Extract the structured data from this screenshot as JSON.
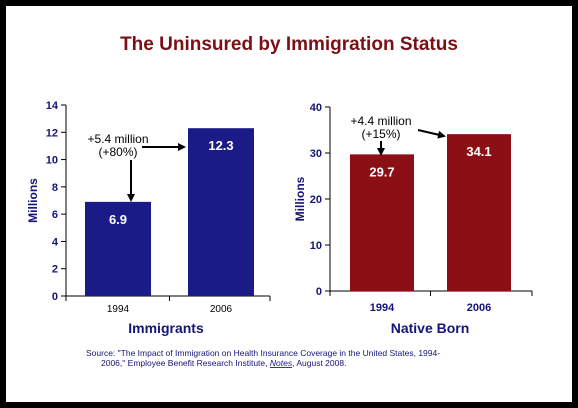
{
  "title": "The Uninsured by Immigration Status",
  "colors": {
    "border": "#000000",
    "title": "#7a1016",
    "immigrant_bar": "#1b1b88",
    "native_bar": "#8b0f14",
    "panel_label": "#14147a",
    "bar_text": "#ffffff"
  },
  "source": {
    "line1": "Source:  \"The Impact of Immigration on Health Insurance Coverage in the United States, 1994-",
    "line2_pre": "2006,\" Employee Benefit Research Institute, ",
    "line2_italic": "Notes",
    "line2_post": ", August 2008."
  },
  "chart_data": [
    {
      "type": "bar",
      "panel_label": "Immigrants",
      "ylabel": "Millions",
      "ylim": [
        0,
        14
      ],
      "yticks": [
        0,
        2,
        4,
        6,
        8,
        10,
        12,
        14
      ],
      "categories": [
        "1994",
        "2006"
      ],
      "values": [
        6.9,
        12.3
      ],
      "value_labels": [
        "6.9",
        "12.3"
      ],
      "annotation": {
        "line1": "+5.4 million",
        "line2": "(+80%)"
      }
    },
    {
      "type": "bar",
      "panel_label": "Native Born",
      "ylabel": "Millions",
      "ylim": [
        0,
        40
      ],
      "yticks": [
        0,
        10,
        20,
        30,
        40
      ],
      "categories": [
        "1994",
        "2006"
      ],
      "values": [
        29.7,
        34.1
      ],
      "value_labels": [
        "29.7",
        "34.1"
      ],
      "annotation": {
        "line1": "+4.4 million",
        "line2": "(+15%)"
      }
    }
  ]
}
